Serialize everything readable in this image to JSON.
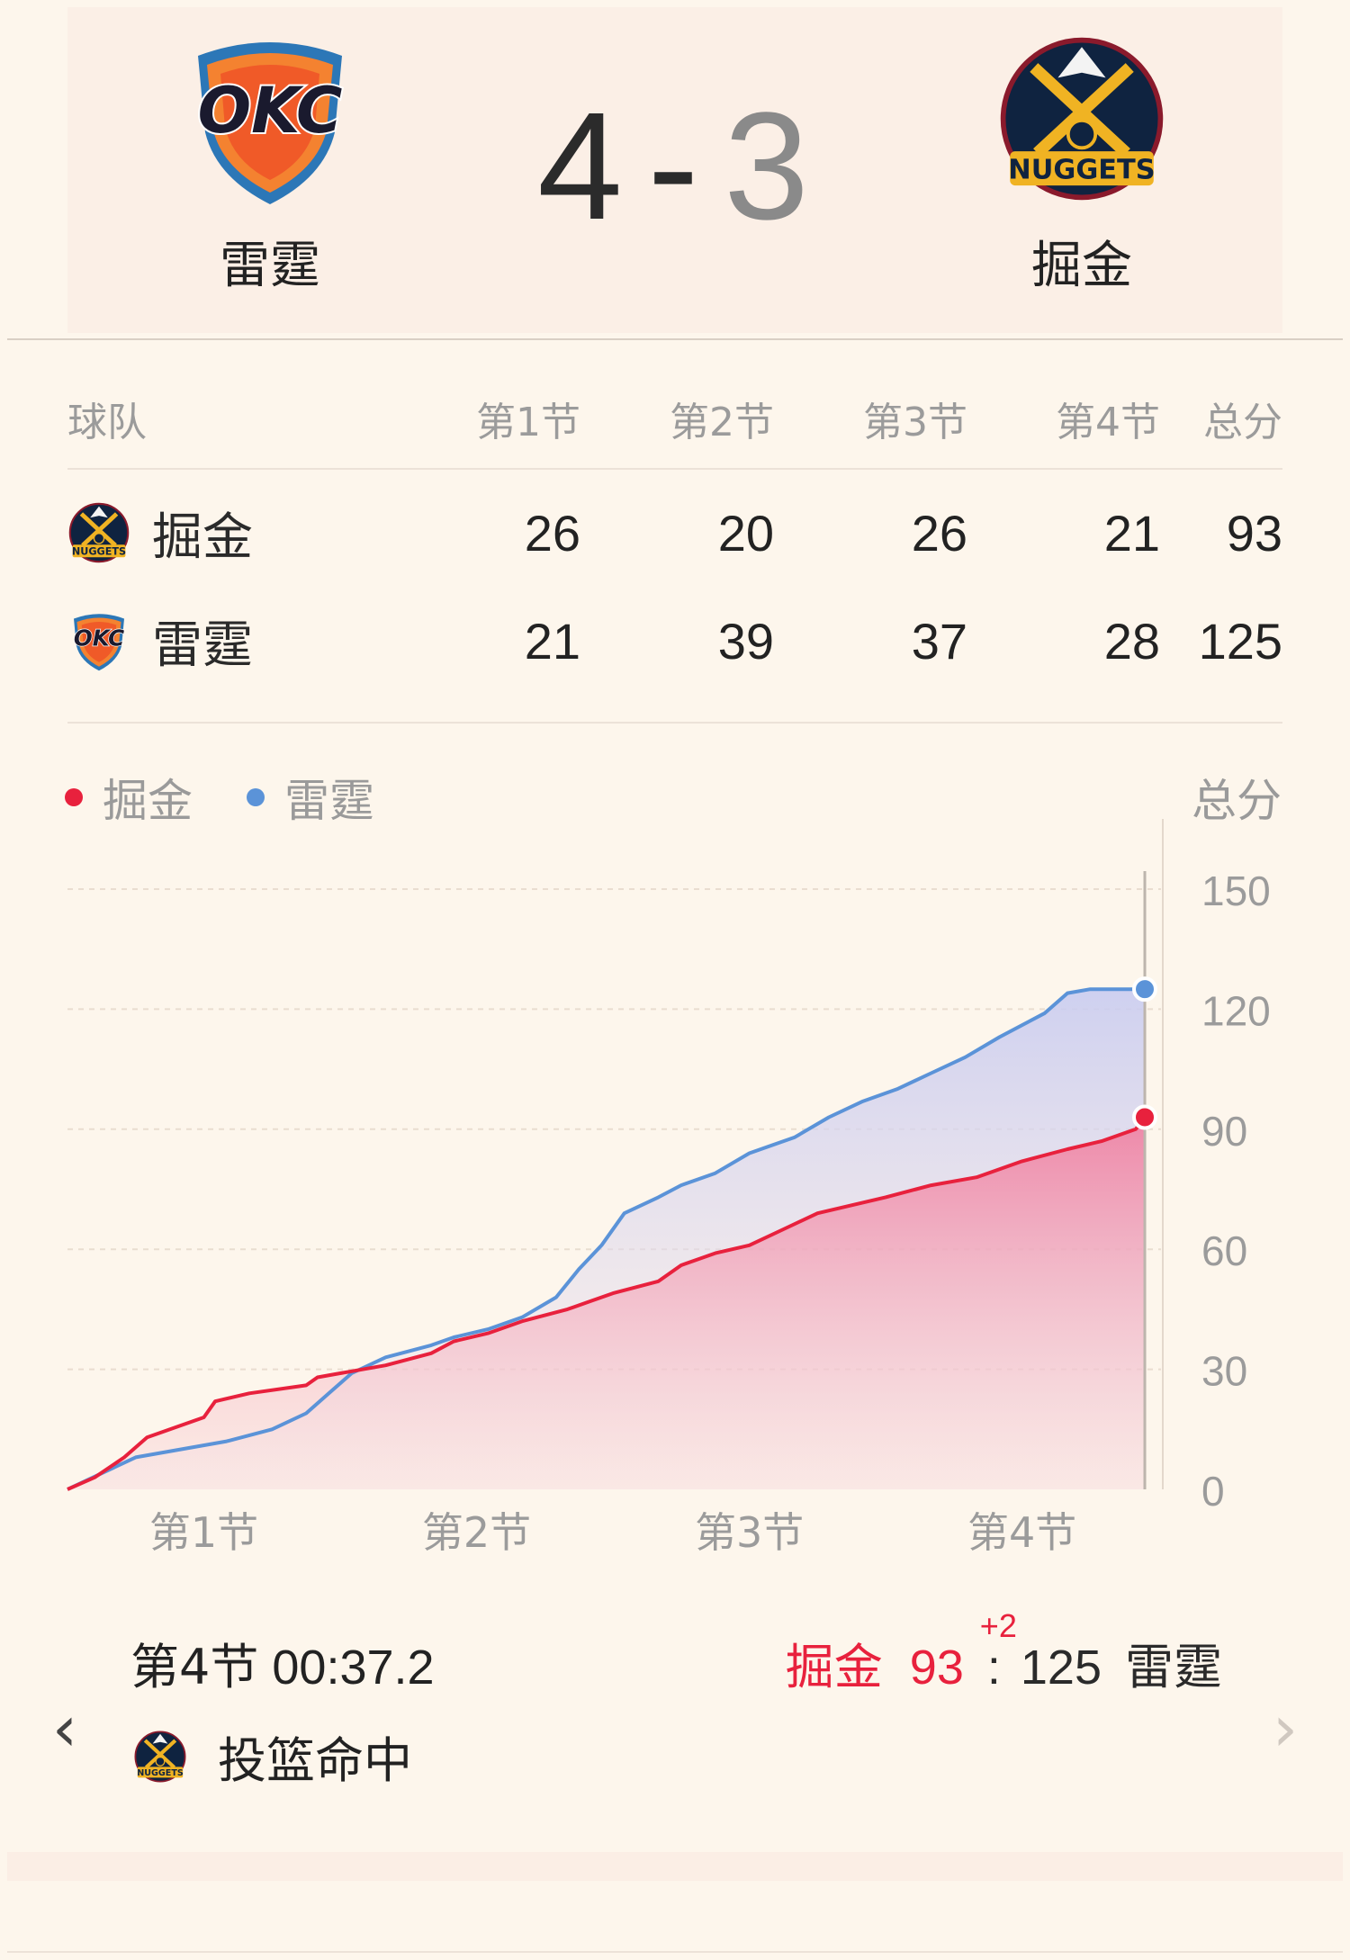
{
  "series_result": {
    "left_team": "雷霆",
    "right_team": "掘金",
    "left_wins": "4",
    "dash": "-",
    "right_wins": "3"
  },
  "table": {
    "headers": [
      "球队",
      "第1节",
      "第2节",
      "第3节",
      "第4节",
      "总分"
    ],
    "rows": [
      {
        "team": "掘金",
        "logo": "nuggets-logo",
        "q": [
          "26",
          "20",
          "26",
          "21"
        ],
        "total": "93"
      },
      {
        "team": "雷霆",
        "logo": "okc-logo",
        "q": [
          "21",
          "39",
          "37",
          "28"
        ],
        "total": "125"
      }
    ]
  },
  "colors": {
    "nuggets": "#e8213d",
    "thunder": "#5b93d8",
    "background": "#fdf6ec"
  },
  "chart_data": {
    "type": "line",
    "legend": [
      "掘金",
      "雷霆"
    ],
    "ylabel": "总分",
    "ylim": [
      0,
      150
    ],
    "yticks": [
      "150",
      "120",
      "90",
      "60",
      "30",
      "0"
    ],
    "xticks": [
      "第1节",
      "第2节",
      "第3节",
      "第4节"
    ],
    "x_unit": "minutes elapsed",
    "xlim": [
      0,
      47.4
    ],
    "series": [
      {
        "name": "掘金",
        "x": [
          0,
          1.2,
          2.5,
          3.5,
          5.0,
          6.0,
          6.5,
          8.0,
          10.5,
          11.0,
          12.0,
          14.0,
          16.0,
          17.0,
          18.5,
          20.0,
          22.0,
          23.0,
          24.0,
          26.0,
          27.0,
          28.5,
          30.0,
          31.5,
          33.0,
          34.5,
          36.0,
          38.0,
          40.0,
          42.0,
          44.0,
          45.5,
          47.0,
          47.4
        ],
        "y": [
          0,
          3,
          8,
          13,
          16,
          18,
          22,
          24,
          26,
          28,
          29,
          31,
          34,
          37,
          39,
          42,
          45,
          47,
          49,
          52,
          56,
          59,
          61,
          65,
          69,
          71,
          73,
          76,
          78,
          82,
          85,
          87,
          90,
          93
        ]
      },
      {
        "name": "雷霆",
        "x": [
          0,
          1.5,
          3.0,
          5.0,
          7.0,
          9.0,
          10.5,
          11.5,
          12.5,
          14.0,
          16.0,
          17.0,
          18.5,
          20.0,
          21.5,
          22.5,
          23.5,
          24.5,
          26.0,
          27.0,
          28.5,
          30.0,
          32.0,
          33.5,
          35.0,
          36.5,
          38.0,
          39.5,
          41.0,
          43.0,
          44.0,
          45.0,
          46.5,
          47.4
        ],
        "y": [
          0,
          4,
          8,
          10,
          12,
          15,
          19,
          24,
          29,
          33,
          36,
          38,
          40,
          43,
          48,
          55,
          61,
          69,
          73,
          76,
          79,
          84,
          88,
          93,
          97,
          100,
          104,
          108,
          113,
          119,
          124,
          125,
          125,
          125
        ]
      }
    ]
  },
  "footer": {
    "time_cn": "第4节",
    "time": "00:37.2",
    "home_name": "掘金",
    "home_score": "93",
    "plus": "+2",
    "separator": ":",
    "away_score": "125",
    "away_name": "雷霆",
    "event_text": "投篮命中",
    "event_icon": "nuggets-logo",
    "prev_icon": "chevron-left-icon",
    "next_icon": "chevron-right-icon"
  }
}
